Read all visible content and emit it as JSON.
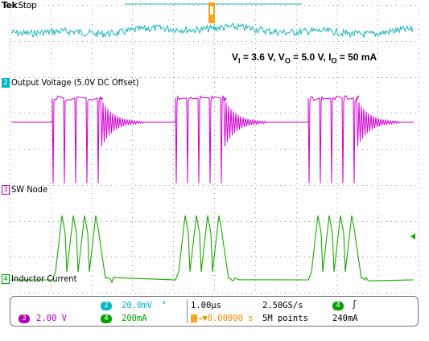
{
  "header": {
    "brand": "Tek",
    "run_state": "Stop"
  },
  "conditions": {
    "vi_label": "V",
    "vi_sub": "I",
    "vi_value": " = 3.6 V, ",
    "vo_label": "V",
    "vo_sub": "O",
    "vo_value": " = 5.0 V, ",
    "io_label": "I",
    "io_sub": "O",
    "io_value": " = 50 mA"
  },
  "channels": [
    {
      "num": "2",
      "label": "Output Voltage (5.0V DC Offset)",
      "color": "#00b7c8"
    },
    {
      "num": "3",
      "label": "SW Node",
      "color": "#b000b0"
    },
    {
      "num": "4",
      "label": "Inductor Current",
      "color": "#00a000"
    }
  ],
  "trace_colors": {
    "ch1": "#1fb5b8",
    "ch2": "#d000d0",
    "ch3": "#19a800"
  },
  "bottom_panel": {
    "ch3_badge": "3",
    "ch3_scale": "2.00 V",
    "ch2_badge": "2",
    "ch2_scale": "20.0mV",
    "ch4_badge": "4",
    "ch4_scale": "200mA",
    "timebase": "1.00µs",
    "trigger_pos": "→▼0.00000 s",
    "sample_rate": "2.50GS/s",
    "record_len": "5M points",
    "trig_badge": "4",
    "trig_slope": "∫",
    "trig_level": "240mA"
  },
  "icons": [
    "trigger-position-icon",
    "ground-marker-icon",
    "bandwidth-limit-icon"
  ]
}
